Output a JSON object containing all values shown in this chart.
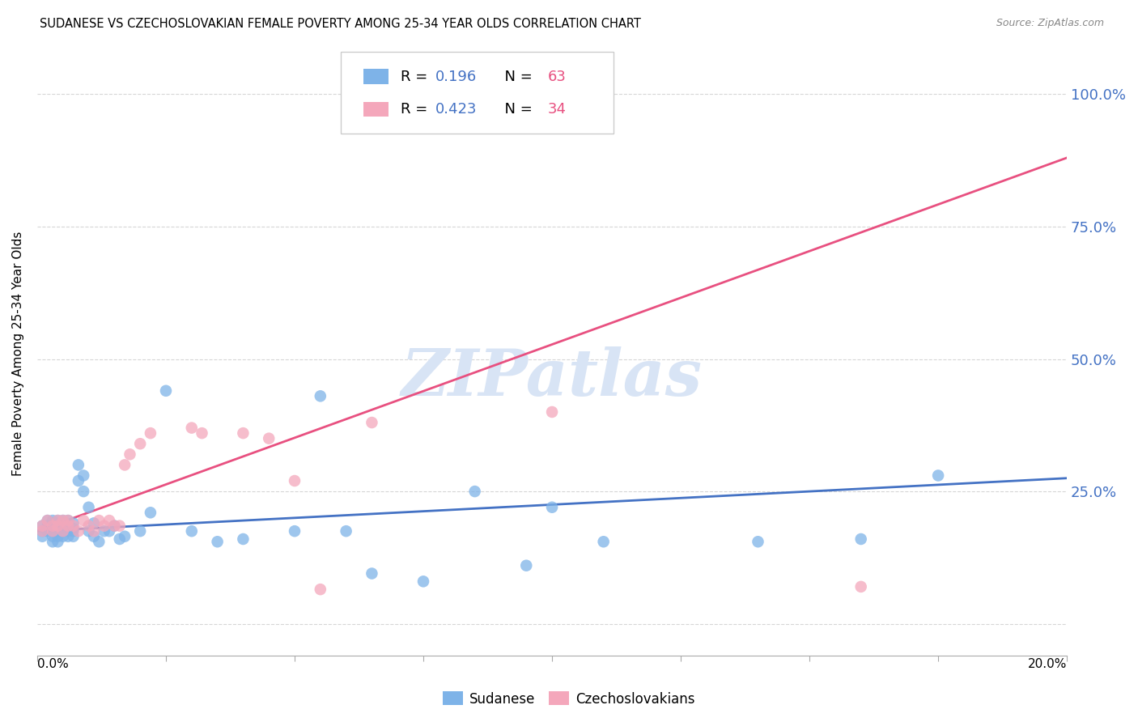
{
  "title": "SUDANESE VS CZECHOSLOVAKIAN FEMALE POVERTY AMONG 25-34 YEAR OLDS CORRELATION CHART",
  "source": "Source: ZipAtlas.com",
  "ylabel": "Female Poverty Among 25-34 Year Olds",
  "yticks": [
    0.0,
    0.25,
    0.5,
    0.75,
    1.0
  ],
  "ytick_labels": [
    "",
    "25.0%",
    "50.0%",
    "75.0%",
    "100.0%"
  ],
  "xmin": 0.0,
  "xmax": 0.2,
  "ymin": -0.06,
  "ymax": 1.08,
  "blue_R": "0.196",
  "blue_N": "63",
  "pink_R": "0.423",
  "pink_N": "34",
  "blue_color": "#7EB3E8",
  "pink_color": "#F4A7BB",
  "blue_line_color": "#4472C4",
  "pink_line_color": "#E85080",
  "watermark_color": "#D8E4F5",
  "watermark_text": "ZIPatlas",
  "sudanese_x": [
    0.001,
    0.001,
    0.001,
    0.002,
    0.002,
    0.002,
    0.002,
    0.003,
    0.003,
    0.003,
    0.003,
    0.003,
    0.004,
    0.004,
    0.004,
    0.004,
    0.004,
    0.004,
    0.005,
    0.005,
    0.005,
    0.005,
    0.005,
    0.006,
    0.006,
    0.006,
    0.006,
    0.007,
    0.007,
    0.007,
    0.007,
    0.008,
    0.008,
    0.009,
    0.009,
    0.01,
    0.01,
    0.011,
    0.011,
    0.012,
    0.013,
    0.014,
    0.015,
    0.016,
    0.017,
    0.02,
    0.022,
    0.025,
    0.03,
    0.035,
    0.04,
    0.05,
    0.055,
    0.06,
    0.065,
    0.075,
    0.085,
    0.095,
    0.1,
    0.11,
    0.14,
    0.16,
    0.175
  ],
  "sudanese_y": [
    0.175,
    0.185,
    0.165,
    0.18,
    0.175,
    0.185,
    0.195,
    0.175,
    0.185,
    0.195,
    0.165,
    0.155,
    0.175,
    0.185,
    0.175,
    0.195,
    0.165,
    0.155,
    0.175,
    0.185,
    0.195,
    0.165,
    0.175,
    0.175,
    0.185,
    0.195,
    0.165,
    0.18,
    0.19,
    0.175,
    0.165,
    0.27,
    0.3,
    0.28,
    0.25,
    0.175,
    0.22,
    0.165,
    0.19,
    0.155,
    0.175,
    0.175,
    0.185,
    0.16,
    0.165,
    0.175,
    0.21,
    0.44,
    0.175,
    0.155,
    0.16,
    0.175,
    0.43,
    0.175,
    0.095,
    0.08,
    0.25,
    0.11,
    0.22,
    0.155,
    0.155,
    0.16,
    0.28
  ],
  "czech_x": [
    0.001,
    0.001,
    0.002,
    0.003,
    0.003,
    0.004,
    0.004,
    0.005,
    0.005,
    0.006,
    0.006,
    0.007,
    0.008,
    0.009,
    0.01,
    0.011,
    0.012,
    0.013,
    0.014,
    0.015,
    0.016,
    0.017,
    0.018,
    0.02,
    0.022,
    0.03,
    0.032,
    0.04,
    0.045,
    0.05,
    0.055,
    0.065,
    0.1,
    0.16
  ],
  "czech_y": [
    0.175,
    0.185,
    0.195,
    0.175,
    0.185,
    0.195,
    0.185,
    0.195,
    0.175,
    0.185,
    0.195,
    0.185,
    0.175,
    0.195,
    0.185,
    0.175,
    0.195,
    0.185,
    0.195,
    0.185,
    0.185,
    0.3,
    0.32,
    0.34,
    0.36,
    0.37,
    0.36,
    0.36,
    0.35,
    0.27,
    0.065,
    0.38,
    0.4,
    0.07
  ],
  "blue_trend_x": [
    0.0,
    0.2
  ],
  "blue_trend_y": [
    0.175,
    0.275
  ],
  "pink_trend_x": [
    0.0,
    0.2
  ],
  "pink_trend_y": [
    0.175,
    0.88
  ]
}
